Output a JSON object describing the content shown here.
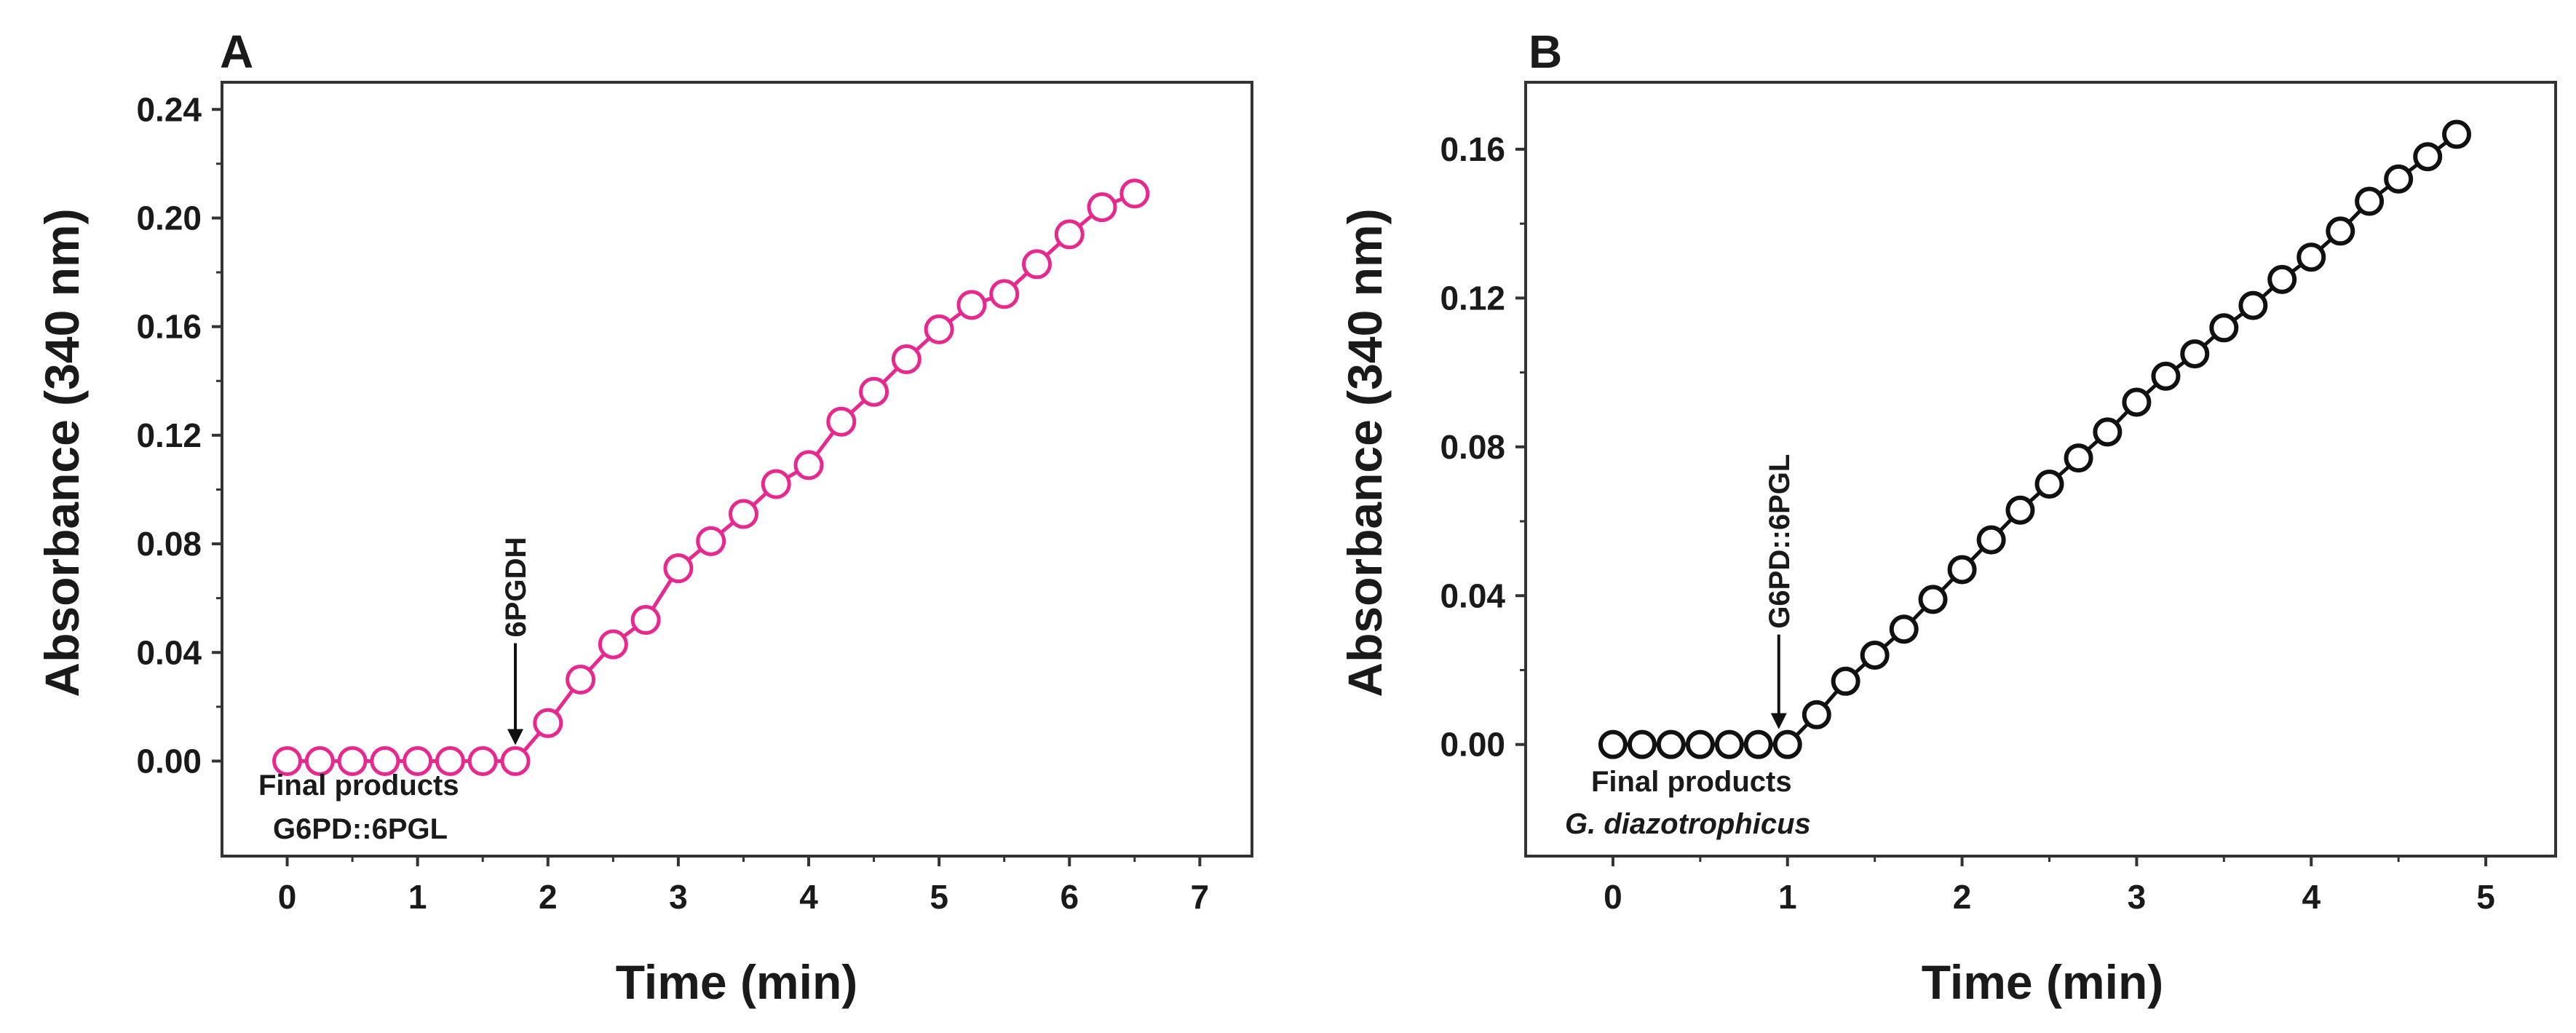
{
  "chart_data": [
    {
      "type": "line",
      "panel_label": "A",
      "xlabel": "Time (min)",
      "ylabel": "Absorbance (340 nm)",
      "xlim": [
        -0.5,
        7.4
      ],
      "ylim": [
        -0.035,
        0.25
      ],
      "x_ticks": [
        0,
        1,
        2,
        3,
        4,
        5,
        6,
        7
      ],
      "y_ticks": [
        0.0,
        0.04,
        0.08,
        0.12,
        0.16,
        0.2,
        0.24
      ],
      "x_tick_labels": [
        "0",
        "1",
        "2",
        "3",
        "4",
        "5",
        "6",
        "7"
      ],
      "y_tick_labels": [
        "0.00",
        "0.04",
        "0.08",
        "0.12",
        "0.16",
        "0.20",
        "0.24"
      ],
      "color": "#e8278f",
      "series": [
        {
          "name": "Absorbance",
          "x": [
            0,
            0.25,
            0.5,
            0.75,
            1.0,
            1.25,
            1.5,
            1.75,
            2.0,
            2.25,
            2.5,
            2.75,
            3.0,
            3.25,
            3.5,
            3.75,
            4.0,
            4.25,
            4.5,
            4.75,
            5.0,
            5.25,
            5.5,
            5.75,
            6.0,
            6.25,
            6.5
          ],
          "y": [
            0,
            0,
            0,
            0,
            0,
            0,
            0,
            0,
            0.014,
            0.03,
            0.043,
            0.052,
            0.071,
            0.081,
            0.091,
            0.102,
            0.109,
            0.125,
            0.136,
            0.148,
            0.159,
            0.168,
            0.172,
            0.183,
            0.194,
            0.204,
            0.209
          ]
        }
      ],
      "annotations": {
        "arrow_label": "6PGDH",
        "arrow_x": 1.75,
        "text_line1": "Final products",
        "text_line2": "G6PD::6PGL"
      }
    },
    {
      "type": "line",
      "panel_label": "B",
      "xlabel": "Time (min)",
      "ylabel": "Absorbance (340 nm)",
      "xlim": [
        -0.5,
        5.4
      ],
      "ylim": [
        -0.03,
        0.178
      ],
      "x_ticks": [
        0,
        1,
        2,
        3,
        4,
        5
      ],
      "y_ticks": [
        0.0,
        0.04,
        0.08,
        0.12,
        0.16
      ],
      "x_tick_labels": [
        "0",
        "1",
        "2",
        "3",
        "4",
        "5"
      ],
      "y_tick_labels": [
        "0.00",
        "0.04",
        "0.08",
        "0.12",
        "0.16"
      ],
      "color": "#111111",
      "series": [
        {
          "name": "Absorbance",
          "x": [
            0,
            0.167,
            0.333,
            0.5,
            0.667,
            0.833,
            1.0,
            1.167,
            1.333,
            1.5,
            1.667,
            1.833,
            2.0,
            2.167,
            2.333,
            2.5,
            2.667,
            2.833,
            3.0,
            3.167,
            3.333,
            3.5,
            3.667,
            3.833,
            4.0,
            4.167,
            4.333,
            4.5,
            4.667,
            4.833
          ],
          "y": [
            0,
            0,
            0,
            0,
            0,
            0,
            0,
            0.008,
            0.017,
            0.024,
            0.031,
            0.039,
            0.047,
            0.055,
            0.063,
            0.07,
            0.077,
            0.084,
            0.092,
            0.099,
            0.105,
            0.112,
            0.118,
            0.125,
            0.131,
            0.138,
            0.146,
            0.152,
            0.158,
            0.164
          ]
        }
      ],
      "annotations": {
        "arrow_label": "G6PD::6PGL",
        "arrow_x": 0.95,
        "text_line1": "Final products",
        "text_line2": "G. diazotrophicus"
      }
    }
  ]
}
